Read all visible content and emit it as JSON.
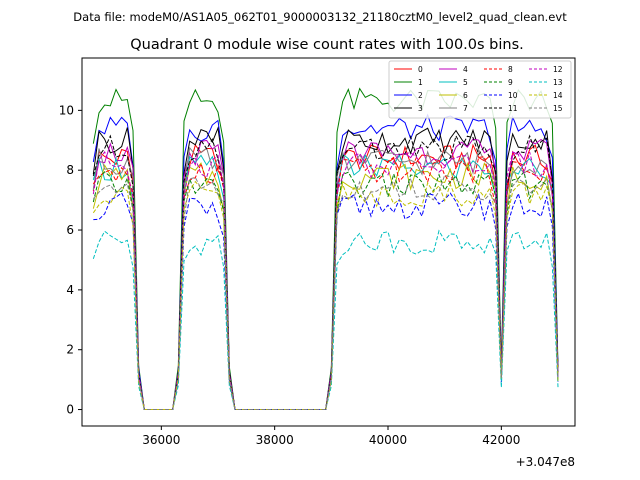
{
  "suptitle": "Data file: modeM0/AS1A05_062T01_9000003132_21180cztM0_level2_quad_clean.evt",
  "chart_data": {
    "type": "line",
    "title": "Quadrant 0 module wise count rates with 100.0s bins.",
    "xlabel": "",
    "ylabel": "",
    "x_offset_label": "+3.047e8",
    "xlim": [
      34600,
      43300
    ],
    "ylim": [
      -0.55,
      11.75
    ],
    "xticks": [
      36000,
      38000,
      40000,
      42000
    ],
    "xtick_labels": [
      "36000",
      "38000",
      "40000",
      "42000"
    ],
    "yticks": [
      0,
      2,
      4,
      6,
      8,
      10
    ],
    "ytick_labels": [
      "0",
      "2",
      "4",
      "6",
      "8",
      "10"
    ],
    "grid": false,
    "legend_position": "top-right",
    "legend_columns": 4,
    "series": [
      {
        "name": "0",
        "color": "#ff0000",
        "dash": "solid",
        "level": 8.4
      },
      {
        "name": "1",
        "color": "#008000",
        "dash": "solid",
        "level": 10.3
      },
      {
        "name": "2",
        "color": "#0000ff",
        "dash": "solid",
        "level": 9.4
      },
      {
        "name": "3",
        "color": "#000000",
        "dash": "solid",
        "level": 9.0
      },
      {
        "name": "4",
        "color": "#bf00bf",
        "dash": "solid",
        "level": 8.6
      },
      {
        "name": "5",
        "color": "#00bfbf",
        "dash": "solid",
        "level": 8.1
      },
      {
        "name": "6",
        "color": "#bfbf00",
        "dash": "solid",
        "level": 7.8
      },
      {
        "name": "7",
        "color": "#808080",
        "dash": "solid",
        "level": 8.3
      },
      {
        "name": "8",
        "color": "#ff0000",
        "dash": "dashed",
        "level": 8.0
      },
      {
        "name": "9",
        "color": "#008000",
        "dash": "dashed",
        "level": 7.5
      },
      {
        "name": "10",
        "color": "#0000ff",
        "dash": "dashed",
        "level": 6.8
      },
      {
        "name": "11",
        "color": "#000000",
        "dash": "dashed",
        "level": 8.7
      },
      {
        "name": "12",
        "color": "#bf00bf",
        "dash": "dashed",
        "level": 8.2
      },
      {
        "name": "13",
        "color": "#00bfbf",
        "dash": "dashed",
        "level": 5.6
      },
      {
        "name": "14",
        "color": "#bfbf00",
        "dash": "dashed",
        "level": 7.2
      },
      {
        "name": "15",
        "color": "#808080",
        "dash": "dashed",
        "level": 7.4
      }
    ],
    "active_segments": [
      [
        34800,
        35500
      ],
      [
        36400,
        37100
      ],
      [
        39100,
        41900
      ],
      [
        42100,
        42900
      ]
    ],
    "x_points": [
      34800,
      34900,
      35000,
      35100,
      35200,
      35300,
      35400,
      35500,
      35600,
      35700,
      35800,
      35900,
      36000,
      36100,
      36200,
      36300,
      36400,
      36500,
      36600,
      36700,
      36800,
      36900,
      37000,
      37100,
      37200,
      37300,
      37400,
      37500,
      37600,
      37700,
      37800,
      37900,
      38000,
      38100,
      38200,
      38300,
      38400,
      38500,
      38600,
      38700,
      38800,
      38900,
      39000,
      39100,
      39200,
      39300,
      39400,
      39500,
      39600,
      39700,
      39800,
      39900,
      40000,
      40100,
      40200,
      40300,
      40400,
      40500,
      40600,
      40700,
      40800,
      40900,
      41000,
      41100,
      41200,
      41300,
      41400,
      41500,
      41600,
      41700,
      41800,
      41900,
      42000,
      42100,
      42200,
      42300,
      42400,
      42500,
      42600,
      42700,
      42800,
      42900,
      43000
    ]
  }
}
